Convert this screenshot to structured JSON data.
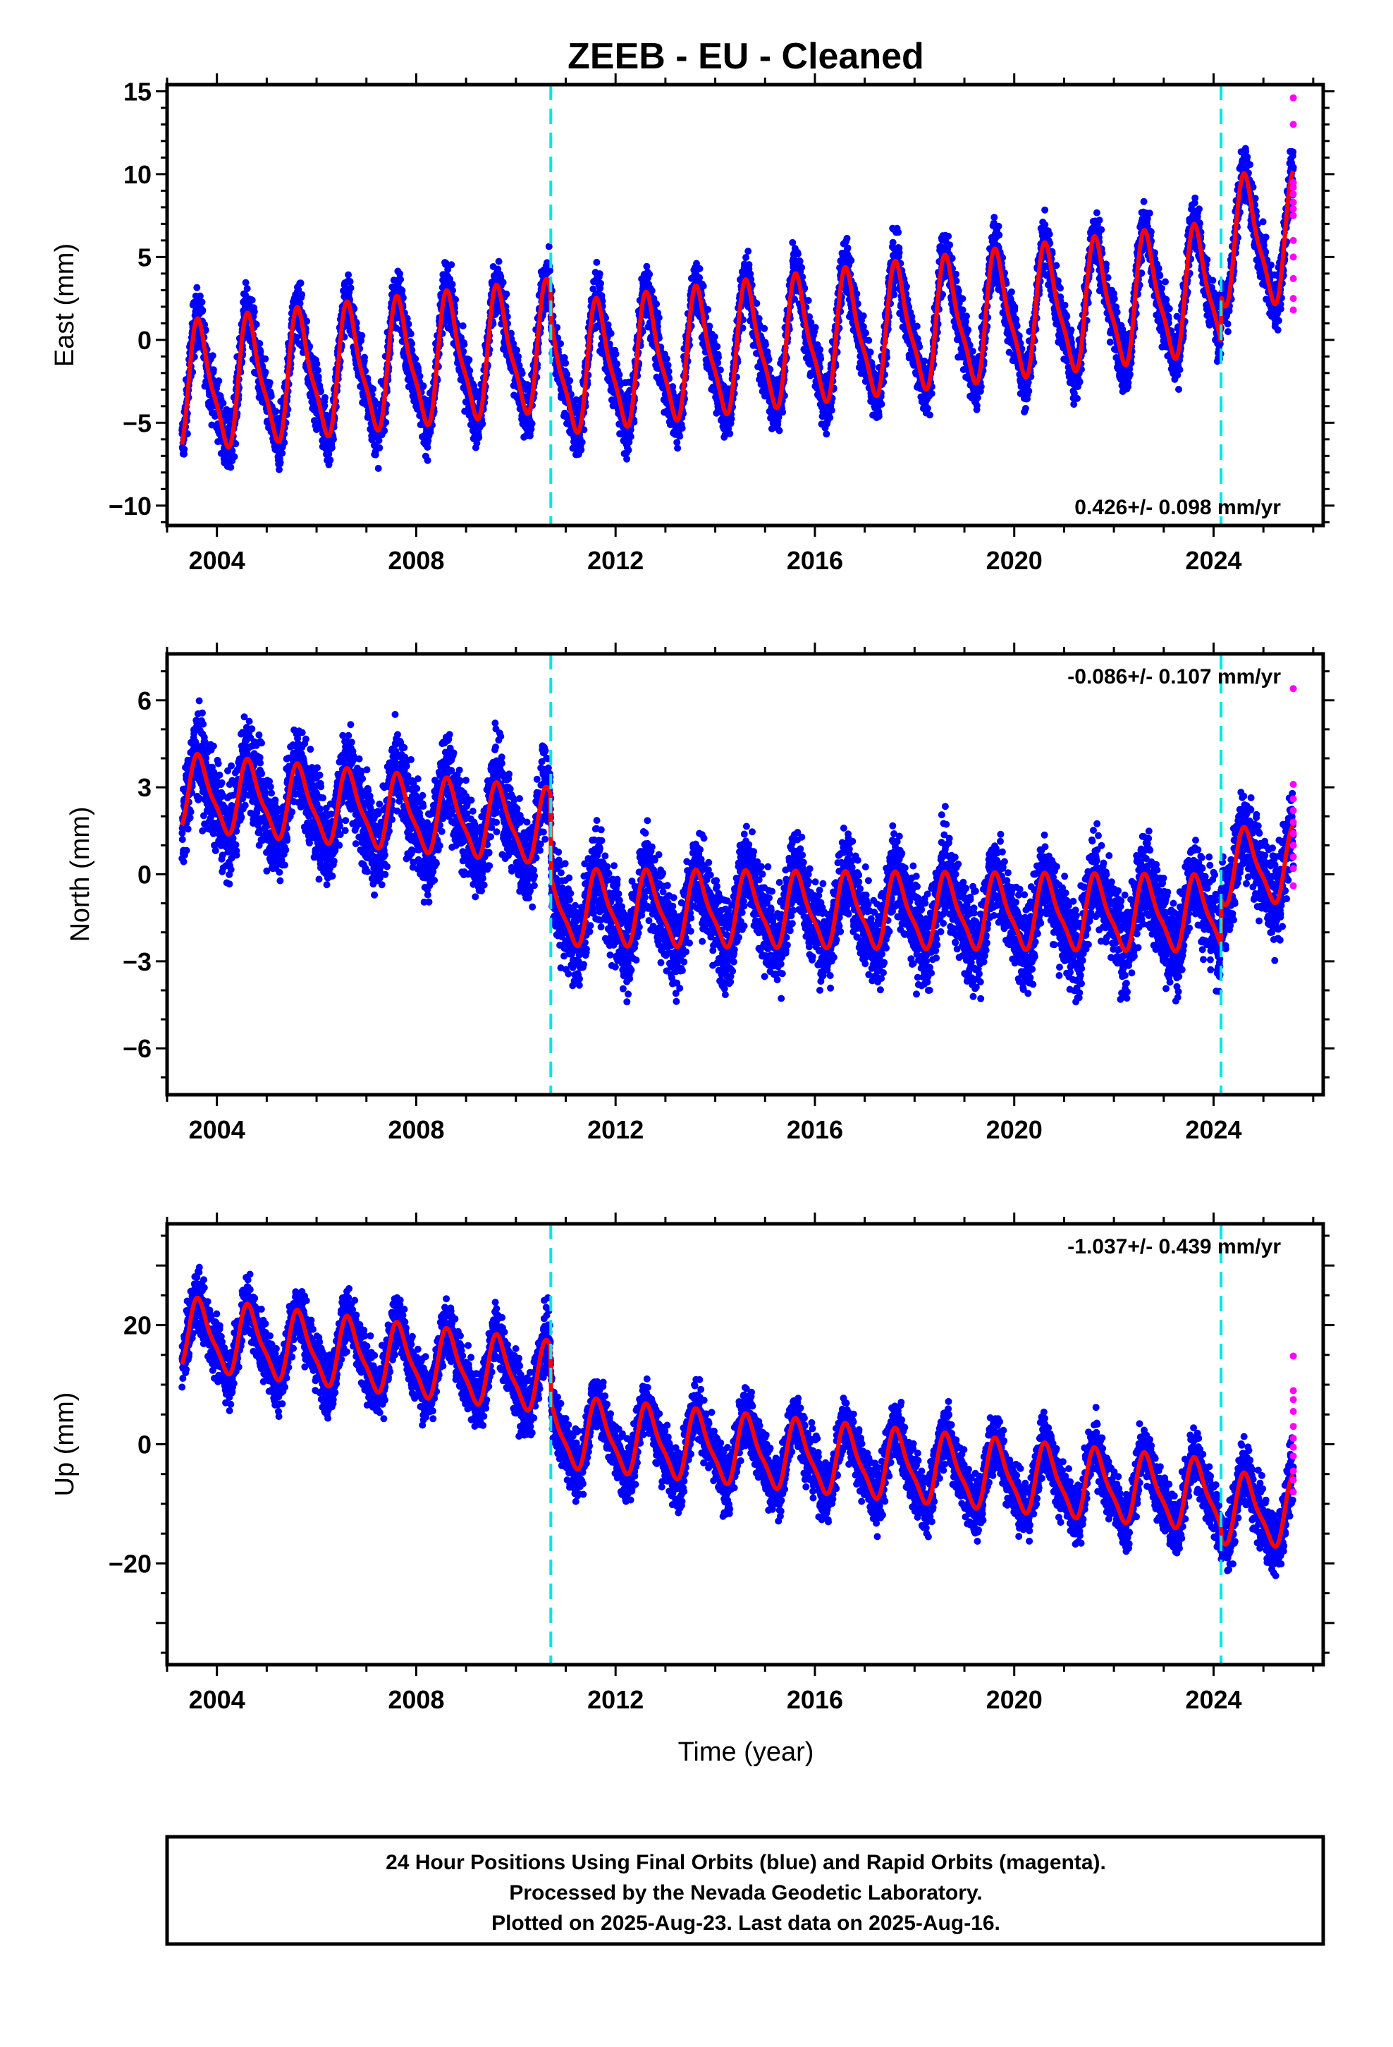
{
  "chart_data": {
    "type": "scatter",
    "title": "ZEEB  - EU - Cleaned",
    "x_range": [
      2003.0,
      2026.2
    ],
    "x_ticks": [
      "2004",
      "2008",
      "2012",
      "2016",
      "2020",
      "2024"
    ],
    "x_tick_values": [
      2004,
      2008,
      2012,
      2016,
      2020,
      2024
    ],
    "xlabel": "Time (year)",
    "grid": false,
    "steps": [
      2010.7,
      2024.15
    ],
    "colors": {
      "final_orbits": "#0000ff",
      "rapid_orbits": "#ff00ff",
      "model_fit": "#ff0000",
      "steps": "#00e5e5"
    },
    "panels": [
      {
        "name": "east",
        "ylabel": "East (mm)",
        "ylim": [
          -11.2,
          15.4
        ],
        "y_ticks": [
          "15",
          "10",
          "5",
          "0",
          "−10"
        ],
        "y_tick_values": [
          15,
          10,
          5,
          0,
          -10
        ],
        "rate_label": "0.426+/- 0.098 mm/yr",
        "rate_position": "bottom-right",
        "fit": {
          "start_year": 2003.3,
          "end_year": 2025.6,
          "level": [
            [
              2003.3,
              -3.0
            ],
            [
              2010.69,
              -0.5
            ],
            [
              2010.71,
              -2.0
            ],
            [
              2024.14,
              3.0
            ],
            [
              2024.16,
              5.8
            ],
            [
              2025.6,
              6.0
            ]
          ],
          "amplitude": 3.6,
          "semiannual": 0.6
        },
        "scatter_spread": 1.6,
        "rapid_orbit_values": [
          14.6,
          13.0,
          9.5,
          9.2,
          8.8,
          8.3,
          7.9,
          7.5,
          6.0,
          5.0,
          3.7,
          2.5,
          1.8
        ]
      },
      {
        "name": "north",
        "ylabel": "North (mm)",
        "ylim": [
          -7.6,
          7.6
        ],
        "y_ticks": [
          "6",
          "3",
          "0",
          "−3",
          "−6"
        ],
        "y_tick_values": [
          6,
          3,
          0,
          -3,
          -6
        ],
        "rate_label": "-0.086+/- 0.107 mm/yr",
        "rate_position": "top-right",
        "fit": {
          "start_year": 2003.3,
          "end_year": 2025.6,
          "level": [
            [
              2003.3,
              2.8
            ],
            [
              2010.69,
              1.6
            ],
            [
              2010.71,
              -1.2
            ],
            [
              2024.14,
              -1.4
            ],
            [
              2024.16,
              0.2
            ],
            [
              2025.6,
              0.3
            ]
          ],
          "amplitude": 1.2,
          "semiannual": 0.6
        },
        "scatter_spread": 1.4,
        "rapid_orbit_values": [
          6.4,
          3.1,
          2.6,
          2.2,
          1.8,
          1.4,
          1.0,
          0.6,
          0.2,
          -0.4
        ]
      },
      {
        "name": "up",
        "ylabel": "Up (mm)",
        "ylim": [
          -37.0,
          37.0
        ],
        "y_ticks": [
          "20",
          "0",
          "−20"
        ],
        "y_tick_values": [
          20,
          0,
          -20
        ],
        "rate_label": "-1.037+/- 0.439 mm/yr",
        "rate_position": "top-right",
        "fit": {
          "start_year": 2003.3,
          "end_year": 2025.6,
          "level": [
            [
              2003.3,
              18.5
            ],
            [
              2010.69,
              11.0
            ],
            [
              2010.71,
              2.0
            ],
            [
              2024.14,
              -9.0
            ],
            [
              2024.16,
              -11.0
            ],
            [
              2025.6,
              -11.5
            ]
          ],
          "amplitude": 5.5,
          "semiannual": 0.6
        },
        "scatter_spread": 4.5,
        "rapid_orbit_values": [
          14.8,
          9.0,
          7.5,
          5.5,
          3.0,
          1.0,
          -0.5,
          -2.0,
          -4.5,
          -6.0,
          -8.0
        ]
      }
    ]
  },
  "footer": {
    "line1": "24 Hour Positions Using Final Orbits (blue) and Rapid Orbits (magenta).",
    "line2": "Processed by the Nevada Geodetic Laboratory.",
    "line3": "Plotted on 2025-Aug-23. Last data on 2025-Aug-16."
  }
}
